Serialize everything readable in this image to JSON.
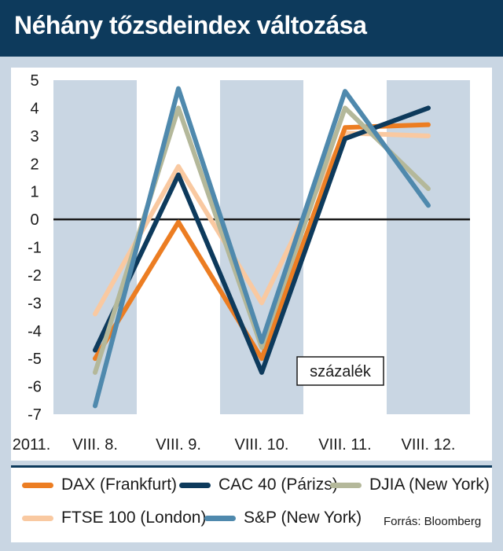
{
  "header": {
    "title": "Néhány tőzsdeindex változása"
  },
  "chart_data": {
    "type": "line",
    "categories": [
      "VIII. 8.",
      "VIII. 9.",
      "VIII. 10.",
      "VIII. 11.",
      "VIII. 12."
    ],
    "year_label": "2011.",
    "unit_label": "százalék",
    "ylim": [
      -7,
      5
    ],
    "yticks": [
      5,
      4,
      3,
      2,
      1,
      0,
      -1,
      -2,
      -3,
      -4,
      -5,
      -6,
      -7
    ],
    "series": [
      {
        "name": "FTSE 100 (London)",
        "color": "#f9c9a1",
        "values": [
          -3.4,
          1.9,
          -3.0,
          3.1,
          3.0
        ]
      },
      {
        "name": "DAX (Frankfurt)",
        "color": "#ec7d22",
        "values": [
          -5.0,
          -0.1,
          -5.0,
          3.3,
          3.4
        ]
      },
      {
        "name": "CAC 40 (Párizs)",
        "color": "#0d3a5c",
        "values": [
          -4.7,
          1.6,
          -5.5,
          2.9,
          4.0
        ]
      },
      {
        "name": "DJIA (New York)",
        "color": "#b4b89a",
        "values": [
          -5.5,
          4.0,
          -4.6,
          4.0,
          1.1
        ]
      },
      {
        "name": "S&P (New York)",
        "color": "#4f89ad",
        "values": [
          -6.7,
          4.7,
          -4.4,
          4.6,
          0.5
        ]
      }
    ]
  },
  "legend": {
    "items": [
      {
        "label": "DAX (Frankfurt)",
        "color": "#ec7d22"
      },
      {
        "label": "CAC 40 (Párizs)",
        "color": "#0d3a5c"
      },
      {
        "label": "DJIA (New York)",
        "color": "#b4b89a"
      },
      {
        "label": "FTSE 100 (London)",
        "color": "#f9c9a1"
      },
      {
        "label": "S&P (New York)",
        "color": "#4f89ad"
      }
    ],
    "source": "Forrás: Bloomberg"
  }
}
